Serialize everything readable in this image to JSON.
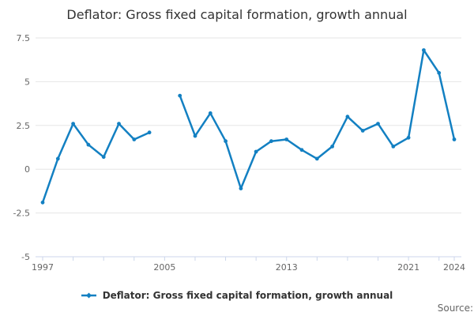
{
  "title": "Deflator: Gross fixed capital formation, growth annual",
  "legend": {
    "label": "Deflator: Gross fixed capital formation, growth annual"
  },
  "footer": {
    "source_label": "Source:"
  },
  "chart_data": {
    "type": "line",
    "title": "Deflator: Gross fixed capital formation, growth annual",
    "series": [
      {
        "name": "Deflator: Gross fixed capital formation, growth annual",
        "x": [
          1997,
          1998,
          1999,
          2000,
          2001,
          2002,
          2003,
          2004,
          2005,
          2006,
          2007,
          2008,
          2009,
          2010,
          2011,
          2012,
          2013,
          2014,
          2015,
          2016,
          2017,
          2018,
          2019,
          2020,
          2021,
          2022,
          2023,
          2024
        ],
        "values": [
          -1.9,
          0.6,
          2.6,
          1.4,
          0.7,
          2.6,
          1.7,
          2.1,
          null,
          4.2,
          1.9,
          3.2,
          1.6,
          -1.1,
          1.0,
          1.6,
          1.7,
          1.1,
          0.6,
          1.3,
          3.0,
          2.2,
          2.6,
          1.3,
          1.8,
          6.8,
          5.5,
          1.7
        ]
      }
    ],
    "missing_x": [
      2005
    ],
    "x_range": [
      1997,
      2024
    ],
    "x_tick_label_years": [
      1997,
      2005,
      2013,
      2021,
      2024
    ],
    "x_minor_tick_step": 2,
    "y_ticks": [
      -5,
      -2.5,
      0,
      2.5,
      5,
      7.5
    ],
    "y_tick_labels": [
      "-5",
      "-2.5",
      "0",
      "2.5",
      "5",
      "7.5"
    ],
    "ylim": [
      -5,
      7.5
    ],
    "grid": "horizontal",
    "legend_position": "bottom",
    "colors": {
      "line": "#1380c2",
      "marker": "#1380c2",
      "grid_line": "#e6e6e6",
      "axis_line": "#ccd6eb",
      "tick_label": "#666666",
      "title_text": "#333333",
      "legend_text": "#333333",
      "source_text": "#666666"
    }
  }
}
